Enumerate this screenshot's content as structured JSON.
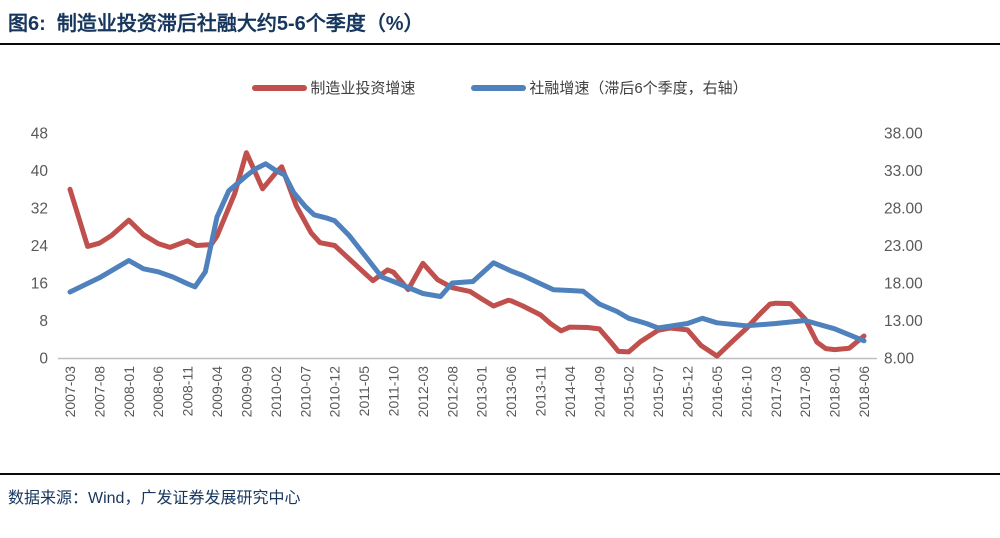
{
  "header": {
    "title": "图6:  制造业投资滞后社融大约5-6个季度（%）"
  },
  "legend": {
    "items": [
      {
        "label": "制造业投资增速",
        "color": "#C0504D"
      },
      {
        "label": "社融增速（滞后6个季度，右轴）",
        "color": "#4F81BD"
      }
    ]
  },
  "footer": {
    "source": "数据来源：Wind，广发证券发展研究中心"
  },
  "colors": {
    "title": "#17365D",
    "axis_text": "#595959",
    "axis_line": "#BFBFBF",
    "red_series": "#C0504D",
    "blue_series": "#4F81BD"
  },
  "chart_data": {
    "type": "line",
    "title": "制造业投资滞后社融大约5-6个季度（%）",
    "grid": false,
    "legend_position": "top",
    "x_categories": [
      "2007-03",
      "2007-08",
      "2008-01",
      "2008-06",
      "2008-11",
      "2009-04",
      "2009-09",
      "2010-02",
      "2010-07",
      "2010-12",
      "2011-05",
      "2011-10",
      "2012-03",
      "2012-08",
      "2013-01",
      "2013-06",
      "2013-11",
      "2014-04",
      "2014-09",
      "2015-02",
      "2015-07",
      "2015-12",
      "2016-05",
      "2016-10",
      "2017-03",
      "2017-08",
      "2018-01",
      "2018-06"
    ],
    "left_axis": {
      "range": [
        0,
        48
      ],
      "ticks": [
        0,
        8,
        16,
        24,
        32,
        40,
        48
      ],
      "labels": [
        "0",
        "8",
        "16",
        "24",
        "32",
        "40",
        "48"
      ]
    },
    "right_axis": {
      "range": [
        8,
        38
      ],
      "ticks": [
        8,
        13,
        18,
        23,
        28,
        33,
        38
      ],
      "labels": [
        "8.00",
        "13.00",
        "18.00",
        "23.00",
        "28.00",
        "33.00",
        "38.00"
      ]
    },
    "series": [
      {
        "name": "制造业投资增速",
        "axis": "left",
        "color": "#C0504D",
        "points": [
          [
            0,
            36.0
          ],
          [
            0.6,
            23.8
          ],
          [
            1,
            24.5
          ],
          [
            1.4,
            26.1
          ],
          [
            2,
            29.4
          ],
          [
            2.5,
            26.3
          ],
          [
            3,
            24.4
          ],
          [
            3.4,
            23.6
          ],
          [
            4,
            25.0
          ],
          [
            4.3,
            24.0
          ],
          [
            4.8,
            24.2
          ],
          [
            5,
            26.0
          ],
          [
            5.6,
            35.1
          ],
          [
            6,
            43.8
          ],
          [
            6.55,
            36.1
          ],
          [
            7,
            39.5
          ],
          [
            7.2,
            40.8
          ],
          [
            7.7,
            32.4
          ],
          [
            8.2,
            26.7
          ],
          [
            8.5,
            24.6
          ],
          [
            9,
            24.0
          ],
          [
            9.5,
            21.1
          ],
          [
            10,
            18.2
          ],
          [
            10.3,
            16.5
          ],
          [
            10.8,
            18.8
          ],
          [
            11,
            18.3
          ],
          [
            11.5,
            14.6
          ],
          [
            12,
            20.2
          ],
          [
            12.5,
            16.7
          ],
          [
            13,
            15.0
          ],
          [
            13.6,
            14.2
          ],
          [
            14,
            12.6
          ],
          [
            14.4,
            11.1
          ],
          [
            14.9,
            12.3
          ],
          [
            15,
            12.2
          ],
          [
            15.4,
            11.1
          ],
          [
            16,
            9.2
          ],
          [
            16.35,
            7.3
          ],
          [
            16.7,
            5.8
          ],
          [
            17,
            6.6
          ],
          [
            17.6,
            6.5
          ],
          [
            18,
            6.2
          ],
          [
            18.4,
            3.3
          ],
          [
            18.65,
            1.4
          ],
          [
            19,
            1.3
          ],
          [
            19.4,
            3.5
          ],
          [
            20,
            5.9
          ],
          [
            20.4,
            6.4
          ],
          [
            21,
            6.0
          ],
          [
            21.45,
            2.7
          ],
          [
            22,
            0.4
          ],
          [
            22.55,
            3.7
          ],
          [
            23,
            6.3
          ],
          [
            23.4,
            9.0
          ],
          [
            23.8,
            11.5
          ],
          [
            24,
            11.7
          ],
          [
            24.5,
            11.6
          ],
          [
            25,
            8.3
          ],
          [
            25.4,
            3.4
          ],
          [
            25.7,
            2.0
          ],
          [
            26,
            1.8
          ],
          [
            26.5,
            2.1
          ],
          [
            27,
            4.7
          ]
        ]
      },
      {
        "name": "社融增速（滞后6个季度，右轴）",
        "axis": "right",
        "color": "#4F81BD",
        "points": [
          [
            0,
            16.8
          ],
          [
            1,
            18.7
          ],
          [
            2,
            21.0
          ],
          [
            2.5,
            19.9
          ],
          [
            3,
            19.5
          ],
          [
            3.5,
            18.8
          ],
          [
            4,
            17.9
          ],
          [
            4.25,
            17.5
          ],
          [
            4.6,
            19.5
          ],
          [
            5,
            26.8
          ],
          [
            5.4,
            30.3
          ],
          [
            6,
            32.3
          ],
          [
            6.3,
            33.2
          ],
          [
            6.65,
            33.9
          ],
          [
            7,
            33.0
          ],
          [
            7.3,
            32.4
          ],
          [
            7.6,
            30.1
          ],
          [
            8,
            28.2
          ],
          [
            8.3,
            27.1
          ],
          [
            8.7,
            26.7
          ],
          [
            9,
            26.3
          ],
          [
            9.5,
            24.3
          ],
          [
            10,
            21.8
          ],
          [
            10.6,
            18.8
          ],
          [
            11,
            18.2
          ],
          [
            12,
            16.6
          ],
          [
            12.6,
            16.2
          ],
          [
            13,
            18.0
          ],
          [
            13.7,
            18.2
          ],
          [
            14.4,
            20.7
          ],
          [
            15,
            19.6
          ],
          [
            15.4,
            19.0
          ],
          [
            16,
            17.9
          ],
          [
            16.45,
            17.1
          ],
          [
            17,
            17.0
          ],
          [
            17.45,
            16.9
          ],
          [
            18,
            15.2
          ],
          [
            18.6,
            14.2
          ],
          [
            19,
            13.3
          ],
          [
            19.6,
            12.6
          ],
          [
            20,
            12.0
          ],
          [
            21,
            12.6
          ],
          [
            21.5,
            13.3
          ],
          [
            22,
            12.7
          ],
          [
            23,
            12.3
          ],
          [
            24,
            12.6
          ],
          [
            25,
            13.0
          ],
          [
            26,
            11.9
          ],
          [
            27,
            10.3
          ]
        ]
      }
    ]
  }
}
